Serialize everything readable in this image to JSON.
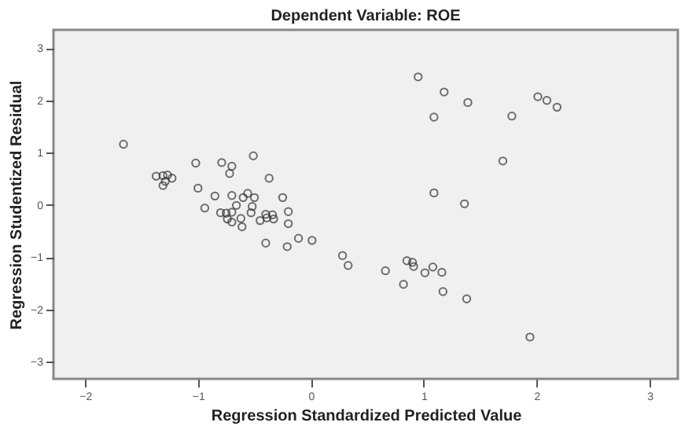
{
  "chart_data": {
    "type": "scatter",
    "title": "Dependent Variable: ROE",
    "xlabel": "Regression Standardized Predicted Value",
    "ylabel": "Regression Studentized Residual",
    "x": [
      -1.66,
      -1.37,
      -1.31,
      -1.27,
      -1.23,
      -1.31,
      -1.29,
      -1.02,
      -1.0,
      -0.94,
      -0.85,
      -0.79,
      -0.7,
      -0.72,
      -0.8,
      -0.75,
      -0.74,
      -0.7,
      -0.7,
      -0.7,
      -0.66,
      -0.62,
      -0.61,
      -0.6,
      -0.56,
      -0.51,
      -0.5,
      -0.52,
      -0.53,
      -0.45,
      -0.4,
      -0.4,
      -0.39,
      -0.37,
      -0.34,
      -0.33,
      -0.25,
      -0.2,
      -0.2,
      -0.21,
      -0.11,
      0.01,
      0.28,
      0.33,
      0.66,
      0.82,
      0.85,
      0.9,
      0.91,
      0.95,
      1.08,
      1.01,
      1.16,
      1.18,
      1.09,
      1.09,
      1.17,
      1.39,
      1.36,
      1.38,
      1.7,
      1.78,
      1.94,
      2.01,
      2.09,
      2.18
    ],
    "values": [
      1.16,
      0.55,
      0.56,
      0.57,
      0.51,
      0.37,
      0.45,
      0.8,
      0.32,
      -0.06,
      0.17,
      0.81,
      0.74,
      0.6,
      -0.15,
      -0.16,
      -0.27,
      -0.14,
      0.18,
      -0.33,
      -0.01,
      -0.26,
      -0.42,
      0.14,
      0.22,
      0.94,
      0.14,
      -0.03,
      -0.15,
      -0.3,
      -0.73,
      -0.18,
      -0.25,
      0.51,
      -0.19,
      -0.27,
      0.14,
      -0.13,
      -0.36,
      -0.8,
      -0.64,
      -0.68,
      -0.97,
      -1.16,
      -1.26,
      -1.52,
      -1.07,
      -1.1,
      -1.18,
      2.45,
      -1.19,
      -1.3,
      -1.29,
      2.16,
      1.68,
      0.23,
      -1.66,
      1.96,
      0.02,
      -1.8,
      0.84,
      1.7,
      -2.53,
      2.07,
      2.0,
      1.87
    ],
    "color": "#333333",
    "marker": "circle",
    "grid": false,
    "xlim": [
      -2.28,
      3.25
    ],
    "ylim": [
      -3.33,
      3.35
    ],
    "xticks": [
      -2,
      -1,
      0,
      1,
      2,
      3
    ],
    "yticks": [
      -3,
      -2,
      -1,
      0,
      1,
      2,
      3
    ]
  }
}
